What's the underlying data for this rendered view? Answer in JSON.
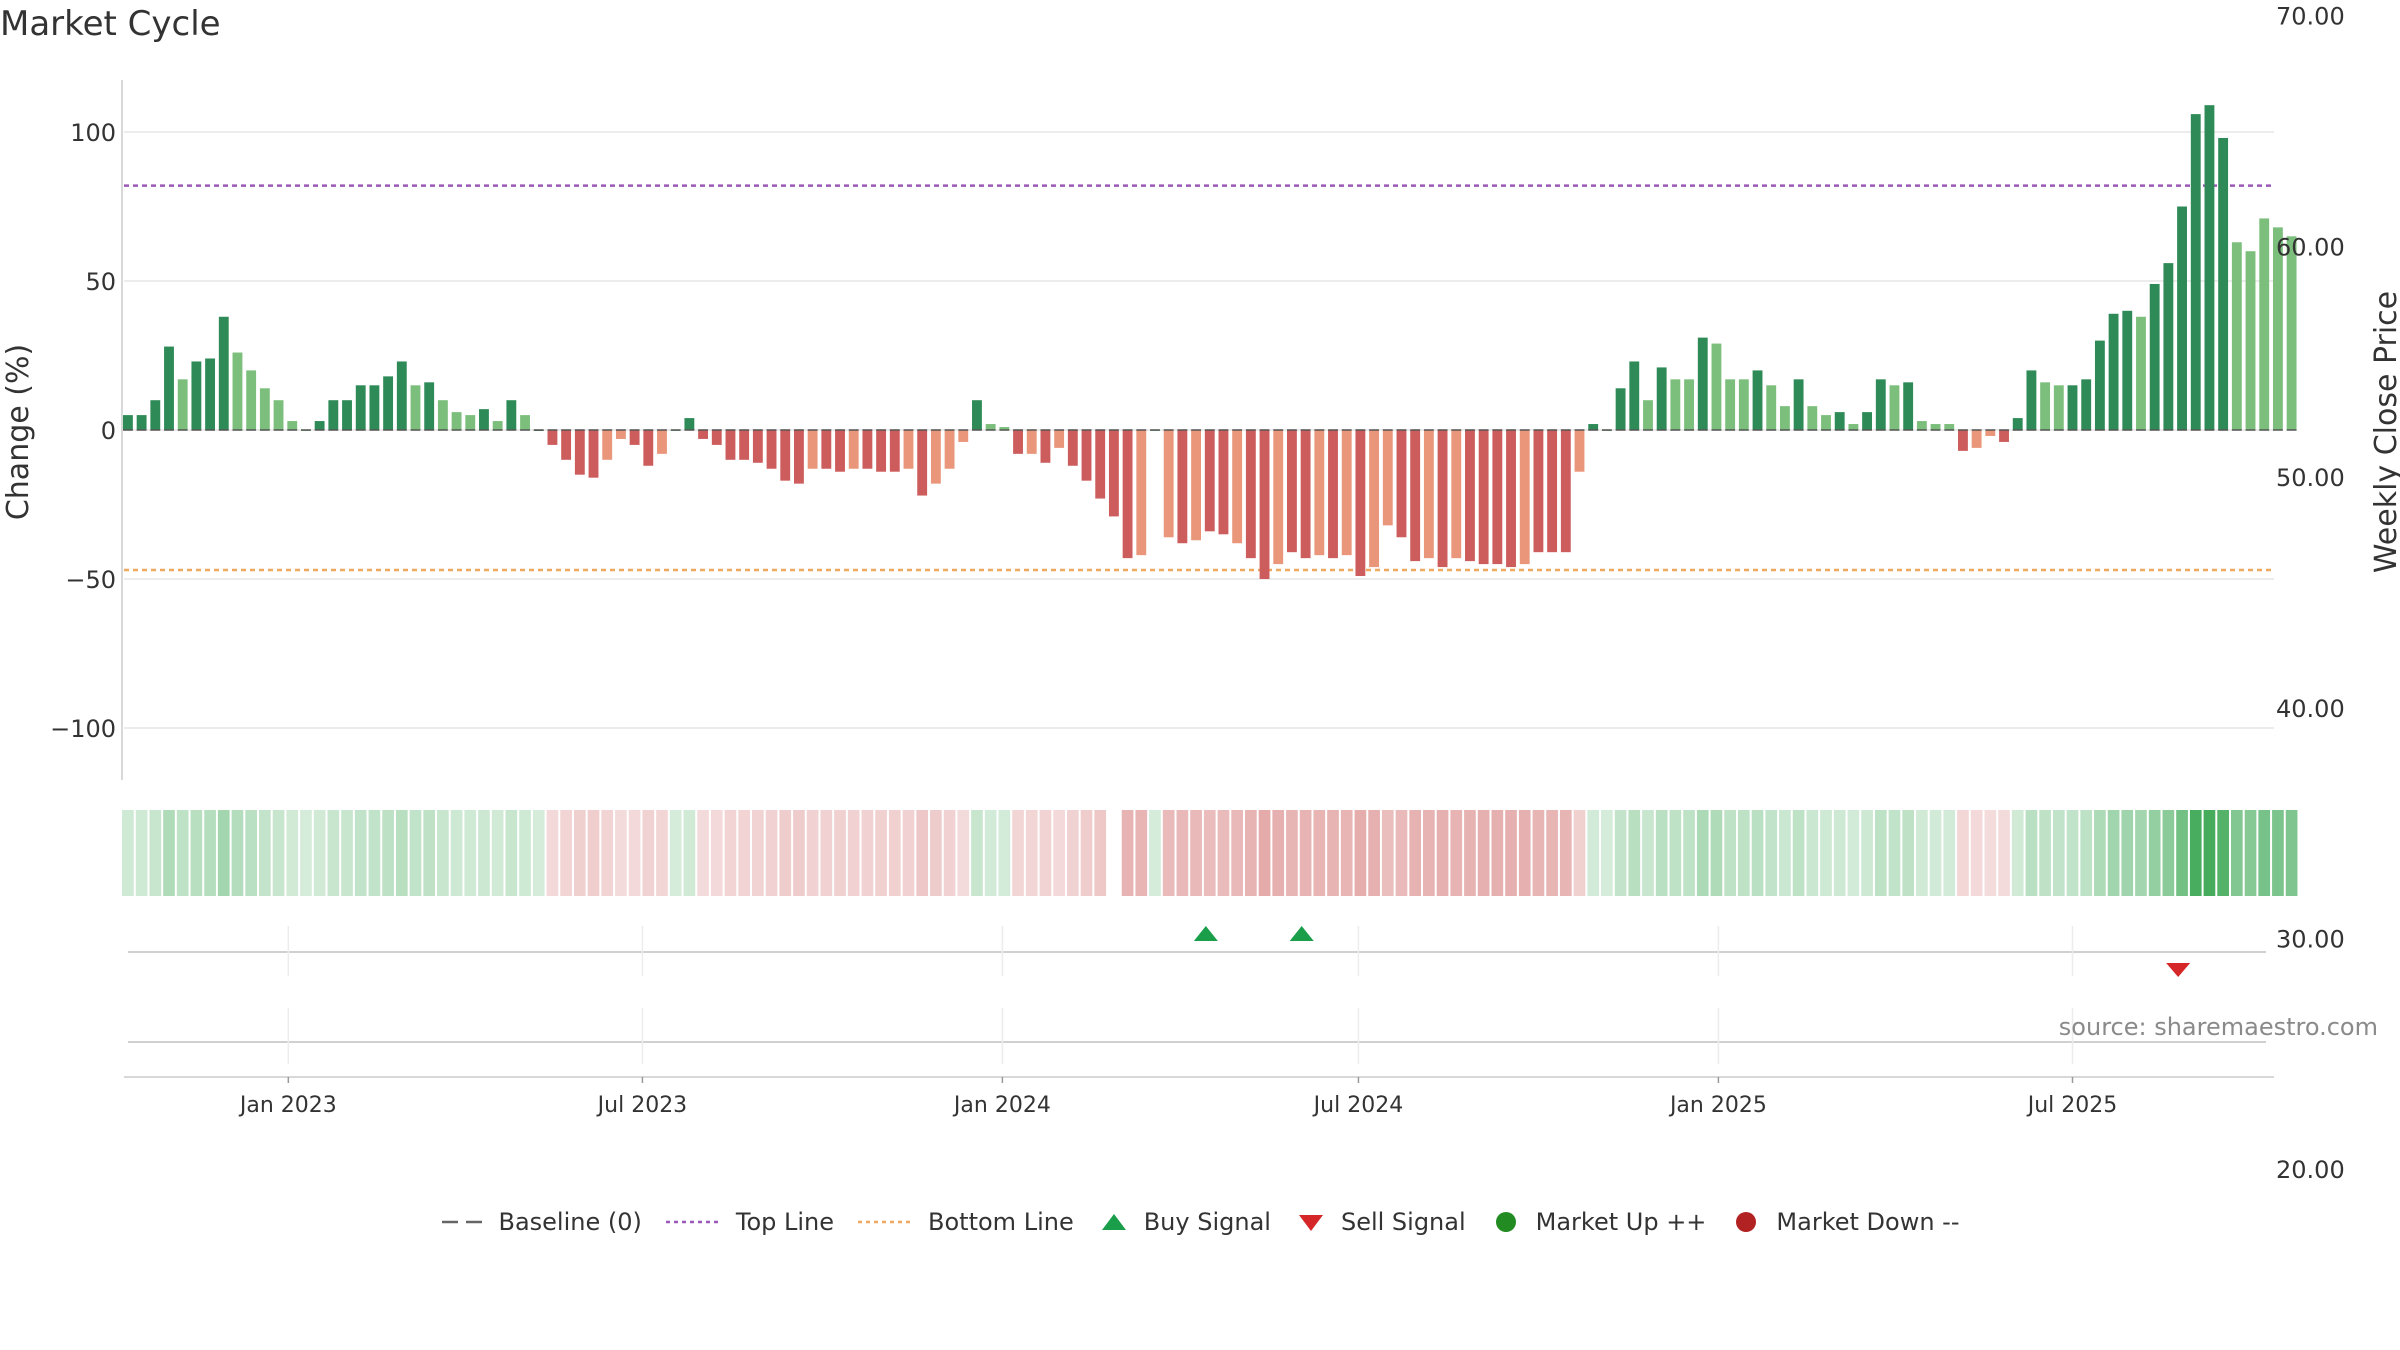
{
  "title": "Market Cycle",
  "source": "source: sharemaestro.com",
  "colors": {
    "up_strong": "#2e8b57",
    "up_light": "#7cbf7c",
    "down_strong": "#cd5c5c",
    "down_light": "#e9967a",
    "top_line": "#9b59b6",
    "bottom_line": "#f0a860",
    "buy": "#1a9e4a",
    "sell": "#d62728",
    "market_up": "#228b22",
    "market_down": "#b22222"
  },
  "legend": [
    {
      "label": "Baseline (0)",
      "symbol": "dash-gray"
    },
    {
      "label": "Top Line",
      "symbol": "dot-purple"
    },
    {
      "label": "Bottom Line",
      "symbol": "dot-orange"
    },
    {
      "label": "Buy Signal",
      "symbol": "triangle-up-green"
    },
    {
      "label": "Sell Signal",
      "symbol": "triangle-down-red"
    },
    {
      "label": "Market Up ++",
      "symbol": "circle-green"
    },
    {
      "label": "Market Down --",
      "symbol": "circle-red"
    }
  ],
  "chart_data": {
    "type": "bar",
    "ylabel": "Change (%)",
    "y2label": "Weekly Close Price",
    "ylim": [
      -118,
      118
    ],
    "y2lim": [
      15.22,
      81.81
    ],
    "yticks": [
      100,
      50,
      0,
      -50,
      -100
    ],
    "yticklabels": [
      "100",
      "50",
      "0",
      "−50",
      "−100"
    ],
    "y2ticks": [
      70,
      60,
      50,
      40,
      30,
      20
    ],
    "y2ticklabels": [
      "70.00",
      "60.00",
      "50.00",
      "40.00",
      "30.00",
      "20.00"
    ],
    "xlim": [
      "2022-10-09",
      "2025-10-12"
    ],
    "xticks": [
      "2023-01-01",
      "2023-07-01",
      "2024-01-01",
      "2024-07-01",
      "2025-01-01",
      "2025-07-01"
    ],
    "xticklabels": [
      "Jan 2023",
      "Jul 2023",
      "Jan 2024",
      "Jul 2024",
      "Jan 2025",
      "Jul 2025"
    ],
    "top_line": 82,
    "bottom_line": -47,
    "baseline": 0,
    "grid": true,
    "legend_position": "bottom",
    "series": [
      {
        "start_date": "2022-10-11",
        "values": [
          5,
          5,
          10,
          28,
          17,
          23,
          24,
          38,
          26,
          20,
          14,
          10,
          3,
          0,
          3,
          10,
          10,
          15,
          15,
          18,
          23,
          15,
          16,
          10,
          6,
          5,
          7,
          3,
          10,
          5,
          0,
          -5,
          -10,
          -15,
          -16,
          -10,
          -3,
          -5,
          -12,
          -8,
          0,
          4,
          -3,
          -5,
          -10,
          -10,
          -11,
          -13,
          -17,
          -18,
          -13,
          -13,
          -14,
          -13,
          -13,
          -14,
          -14,
          -13,
          -22,
          -18,
          -13,
          -4,
          10,
          2,
          1,
          -8,
          -8,
          -11,
          -6,
          -12,
          -17,
          -23,
          -29,
          -43,
          -42,
          0,
          -36,
          -38,
          -37,
          -34,
          -35,
          -38,
          -43,
          -50,
          -45,
          -41,
          -43,
          -42,
          -43,
          -42,
          -49,
          -46,
          -32,
          -36,
          -44,
          -43,
          -46,
          -43,
          -44,
          -45,
          -45,
          -46,
          -45,
          -41,
          -41,
          -41,
          -14,
          2,
          0,
          14,
          23,
          10,
          21,
          17,
          17,
          31,
          29,
          17,
          17,
          20,
          15,
          8,
          17,
          8,
          5,
          6,
          2,
          6,
          17,
          15,
          16,
          3,
          2,
          2,
          -7,
          -6,
          -2,
          -4,
          4,
          20,
          16,
          15,
          15,
          17,
          30,
          39,
          40,
          38,
          49,
          56,
          75,
          106,
          109,
          98,
          63,
          60,
          71,
          68,
          65
        ],
        "strength": [
          1,
          1,
          1,
          1,
          0,
          1,
          1,
          1,
          0,
          0,
          0,
          0,
          0,
          0,
          1,
          1,
          1,
          1,
          1,
          1,
          1,
          0,
          1,
          0,
          0,
          0,
          1,
          0,
          1,
          0,
          1,
          1,
          1,
          1,
          1,
          0,
          0,
          1,
          1,
          0,
          0,
          1,
          1,
          1,
          1,
          1,
          1,
          1,
          1,
          1,
          0,
          1,
          1,
          0,
          1,
          1,
          1,
          0,
          1,
          0,
          0,
          0,
          1,
          0,
          0,
          1,
          0,
          1,
          0,
          1,
          1,
          1,
          1,
          1,
          0,
          0,
          0,
          1,
          0,
          1,
          1,
          0,
          1,
          1,
          0,
          1,
          1,
          0,
          1,
          0,
          1,
          0,
          0,
          1,
          1,
          0,
          1,
          0,
          1,
          1,
          1,
          1,
          0,
          1,
          1,
          1,
          0,
          1,
          0,
          1,
          1,
          0,
          1,
          0,
          0,
          1,
          0,
          0,
          0,
          1,
          0,
          0,
          1,
          0,
          0,
          1,
          0,
          1,
          1,
          0,
          1,
          0,
          0,
          0,
          1,
          0,
          0,
          1,
          1,
          1,
          0,
          0,
          1,
          1,
          1,
          1,
          1,
          0,
          1,
          1,
          1,
          1,
          1,
          1,
          0,
          0,
          0,
          0,
          0,
          0,
          0
        ]
      }
    ],
    "sentiment_band_gap_date": "2024-02-25",
    "buy_signals": [
      "2024-04-14",
      "2024-06-02"
    ],
    "sell_signals": [
      "2025-08-24"
    ]
  }
}
